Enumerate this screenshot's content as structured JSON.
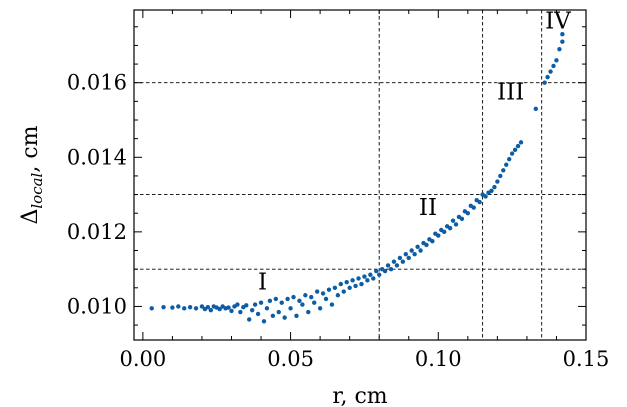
{
  "chart_data": {
    "type": "scatter",
    "xlabel": "r, cm",
    "ylabel_main": "Δ",
    "ylabel_sub": "local",
    "ylabel_unit": ", cm",
    "xlim": [
      -0.003,
      0.15
    ],
    "ylim": [
      0.0091,
      0.01795
    ],
    "xticks": [
      0.0,
      0.05,
      0.1,
      0.15
    ],
    "xtick_labels": [
      "0.00",
      "0.05",
      "0.10",
      "0.15"
    ],
    "yticks": [
      0.01,
      0.012,
      0.014,
      0.016
    ],
    "ytick_labels": [
      "0.010",
      "0.012",
      "0.014",
      "0.016"
    ],
    "grid": false,
    "marker_color": "#0C5DA5",
    "reference_lines": {
      "vertical": [
        0.08,
        0.115,
        0.135
      ],
      "horizontal": [
        0.011,
        0.013,
        0.016
      ]
    },
    "region_labels": [
      {
        "text": "I",
        "x": 0.0405,
        "y": 0.01045
      },
      {
        "text": "II",
        "x": 0.0965,
        "y": 0.01245
      },
      {
        "text": "III",
        "x": 0.1245,
        "y": 0.01555
      },
      {
        "text": "IV",
        "x": 0.1405,
        "y": 0.01745
      }
    ],
    "series": [
      {
        "points": [
          [
            0.003,
            0.00995
          ],
          [
            0.007,
            0.00998
          ],
          [
            0.01,
            0.00997
          ],
          [
            0.012,
            0.01
          ],
          [
            0.014,
            0.00995
          ],
          [
            0.016,
            0.00998
          ],
          [
            0.018,
            0.00995
          ],
          [
            0.02,
            0.01
          ],
          [
            0.021,
            0.00993
          ],
          [
            0.022,
            0.00998
          ],
          [
            0.023,
            0.0099
          ],
          [
            0.024,
            0.01
          ],
          [
            0.025,
            0.00997
          ],
          [
            0.026,
            0.00993
          ],
          [
            0.027,
            0.01
          ],
          [
            0.028,
            0.00995
          ],
          [
            0.029,
            0.00997
          ],
          [
            0.03,
            0.00988
          ],
          [
            0.031,
            0.01
          ],
          [
            0.032,
            0.01005
          ],
          [
            0.033,
            0.00985
          ],
          [
            0.034,
            0.00998
          ],
          [
            0.035,
            0.01003
          ],
          [
            0.036,
            0.00965
          ],
          [
            0.037,
            0.0099
          ],
          [
            0.038,
            0.01005
          ],
          [
            0.039,
            0.0098
          ],
          [
            0.04,
            0.0101
          ],
          [
            0.041,
            0.0096
          ],
          [
            0.042,
            0.00995
          ],
          [
            0.043,
            0.01015
          ],
          [
            0.044,
            0.00975
          ],
          [
            0.045,
            0.0102
          ],
          [
            0.046,
            0.00985
          ],
          [
            0.047,
            0.0101
          ],
          [
            0.048,
            0.0097
          ],
          [
            0.049,
            0.0102
          ],
          [
            0.05,
            0.00995
          ],
          [
            0.051,
            0.01025
          ],
          [
            0.052,
            0.00975
          ],
          [
            0.053,
            0.01015
          ],
          [
            0.054,
            0.01005
          ],
          [
            0.055,
            0.0103
          ],
          [
            0.056,
            0.00985
          ],
          [
            0.057,
            0.01025
          ],
          [
            0.058,
            0.0101
          ],
          [
            0.059,
            0.0104
          ],
          [
            0.06,
            0.00995
          ],
          [
            0.061,
            0.01035
          ],
          [
            0.062,
            0.0102
          ],
          [
            0.063,
            0.01045
          ],
          [
            0.064,
            0.01005
          ],
          [
            0.065,
            0.0105
          ],
          [
            0.066,
            0.0103
          ],
          [
            0.067,
            0.0106
          ],
          [
            0.068,
            0.0104
          ],
          [
            0.069,
            0.01065
          ],
          [
            0.07,
            0.0105
          ],
          [
            0.071,
            0.0107
          ],
          [
            0.072,
            0.01055
          ],
          [
            0.073,
            0.01075
          ],
          [
            0.074,
            0.0106
          ],
          [
            0.075,
            0.0108
          ],
          [
            0.076,
            0.0107
          ],
          [
            0.077,
            0.01085
          ],
          [
            0.078,
            0.01075
          ],
          [
            0.079,
            0.01095
          ],
          [
            0.08,
            0.01085
          ],
          [
            0.081,
            0.011
          ],
          [
            0.082,
            0.01095
          ],
          [
            0.083,
            0.0111
          ],
          [
            0.084,
            0.011
          ],
          [
            0.085,
            0.0112
          ],
          [
            0.086,
            0.0111
          ],
          [
            0.087,
            0.0113
          ],
          [
            0.088,
            0.0112
          ],
          [
            0.089,
            0.0114
          ],
          [
            0.09,
            0.0113
          ],
          [
            0.091,
            0.0115
          ],
          [
            0.092,
            0.0114
          ],
          [
            0.093,
            0.0116
          ],
          [
            0.094,
            0.0115
          ],
          [
            0.095,
            0.0117
          ],
          [
            0.096,
            0.01165
          ],
          [
            0.097,
            0.0118
          ],
          [
            0.098,
            0.01175
          ],
          [
            0.099,
            0.01195
          ],
          [
            0.1,
            0.0119
          ],
          [
            0.101,
            0.01205
          ],
          [
            0.102,
            0.012
          ],
          [
            0.103,
            0.01215
          ],
          [
            0.104,
            0.0121
          ],
          [
            0.105,
            0.0123
          ],
          [
            0.106,
            0.0122
          ],
          [
            0.107,
            0.0124
          ],
          [
            0.108,
            0.01235
          ],
          [
            0.109,
            0.01255
          ],
          [
            0.11,
            0.0125
          ],
          [
            0.111,
            0.0127
          ],
          [
            0.112,
            0.01265
          ],
          [
            0.113,
            0.01285
          ],
          [
            0.114,
            0.0128
          ],
          [
            0.115,
            0.013
          ],
          [
            0.116,
            0.01295
          ],
          [
            0.117,
            0.01305
          ],
          [
            0.118,
            0.0131
          ],
          [
            0.119,
            0.0132
          ],
          [
            0.12,
            0.01335
          ],
          [
            0.121,
            0.0135
          ],
          [
            0.122,
            0.01365
          ],
          [
            0.123,
            0.0138
          ],
          [
            0.124,
            0.01395
          ],
          [
            0.125,
            0.0141
          ],
          [
            0.126,
            0.0142
          ],
          [
            0.127,
            0.0143
          ],
          [
            0.128,
            0.0144
          ],
          [
            0.133,
            0.0153
          ],
          [
            0.136,
            0.016
          ],
          [
            0.137,
            0.01615
          ],
          [
            0.138,
            0.0163
          ],
          [
            0.139,
            0.01645
          ],
          [
            0.14,
            0.0166
          ],
          [
            0.141,
            0.0169
          ],
          [
            0.142,
            0.0171
          ],
          [
            0.142,
            0.0173
          ]
        ]
      }
    ]
  }
}
